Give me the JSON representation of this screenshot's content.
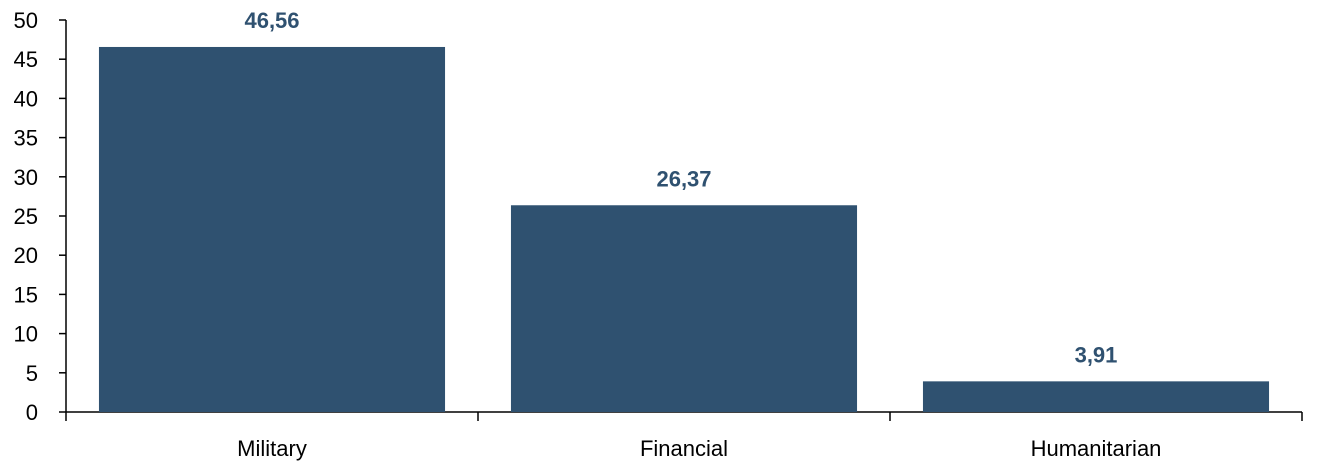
{
  "chart_data": {
    "type": "bar",
    "categories": [
      "Military",
      "Financial",
      "Humanitarian"
    ],
    "values": [
      46.56,
      26.37,
      3.91
    ],
    "data_labels": [
      "46,56",
      "26,37",
      "3,91"
    ],
    "title": "",
    "xlabel": "",
    "ylabel": "",
    "ylim": [
      0,
      50
    ],
    "yticks": [
      "0",
      "5",
      "10",
      "15",
      "20",
      "25",
      "30",
      "35",
      "40",
      "45",
      "50"
    ],
    "grid": false,
    "legend": "none",
    "bar_color": "#2f5170",
    "label_color": "#2f5170"
  }
}
